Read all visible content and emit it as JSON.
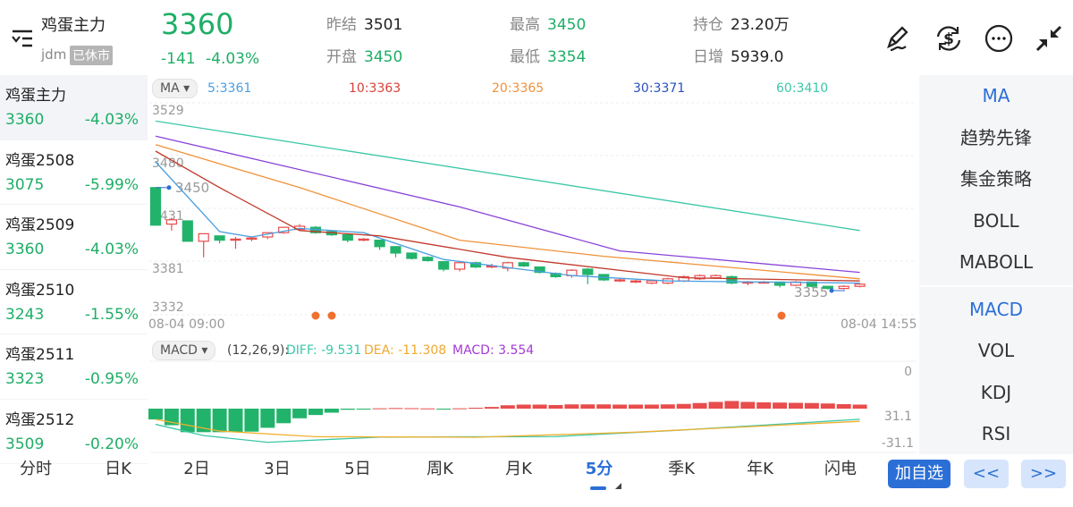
{
  "header": {
    "name": "鸡蛋主力",
    "code": "jdm",
    "status": "已休市",
    "price": "3360",
    "change": "-141",
    "change_pct": "-4.03%",
    "stats": [
      {
        "label": "昨结",
        "value": "3501",
        "color": "#222222"
      },
      {
        "label": "开盘",
        "value": "3450",
        "color": "#1fae66"
      },
      {
        "label": "最高",
        "value": "3450",
        "color": "#1fae66"
      },
      {
        "label": "最低",
        "value": "3354",
        "color": "#1fae66"
      },
      {
        "label": "持仓",
        "value": "23.20万",
        "color": "#222222"
      },
      {
        "label": "日增",
        "value": "5939.0",
        "color": "#222222"
      }
    ],
    "icons": [
      "draw-icon",
      "currency-exchange-icon",
      "more-icon",
      "collapse-icon"
    ]
  },
  "sidebar": {
    "items": [
      {
        "name": "鸡蛋主力",
        "price": "3360",
        "pct": "-4.03%"
      },
      {
        "name": "鸡蛋2508",
        "price": "3075",
        "pct": "-5.99%"
      },
      {
        "name": "鸡蛋2509",
        "price": "3360",
        "pct": "-4.03%"
      },
      {
        "name": "鸡蛋2510",
        "price": "3243",
        "pct": "-1.55%"
      },
      {
        "name": "鸡蛋2511",
        "price": "3323",
        "pct": "-0.95%"
      },
      {
        "name": "鸡蛋2512",
        "price": "3509",
        "pct": "-0.20%"
      }
    ]
  },
  "ma_legend": {
    "selector": "MA ▾",
    "items": [
      {
        "text": "5:3361",
        "color": "#4a9ee0"
      },
      {
        "text": "10:3363",
        "color": "#d9403a"
      },
      {
        "text": "20:3365",
        "color": "#f0923a"
      },
      {
        "text": "30:3371",
        "color": "#2a4fc0"
      },
      {
        "text": "60:3410",
        "color": "#3cc7a8"
      }
    ]
  },
  "macd_legend": {
    "selector": "MACD ▾",
    "params": "(12,26,9):",
    "diff": "DIFF: -9.531",
    "dea": "DEA: -11.308",
    "macd": "MACD: 3.554"
  },
  "price_axis": [
    "3529",
    "3480",
    "3431",
    "3381",
    "3332"
  ],
  "time_axis": {
    "start": "08-04 09:00",
    "end": "08-04 14:55"
  },
  "markers": {
    "high": "3450",
    "low": "3355"
  },
  "macd_axis": [
    "31.1",
    "0",
    "-31.1"
  ],
  "colors": {
    "up": "#e84c4c",
    "down": "#22b36b",
    "accent": "#2b6fd6"
  },
  "chart_data": {
    "type": "candlestick",
    "ylim": [
      3332,
      3529
    ],
    "candles": [
      [
        3450,
        3450,
        3415,
        3415
      ],
      [
        3416,
        3422,
        3410,
        3420
      ],
      [
        3419,
        3419,
        3400,
        3400
      ],
      [
        3400,
        3407,
        3385,
        3407
      ],
      [
        3405,
        3405,
        3398,
        3401
      ],
      [
        3401,
        3404,
        3393,
        3402
      ],
      [
        3402,
        3404,
        3400,
        3403
      ],
      [
        3404,
        3408,
        3402,
        3408
      ],
      [
        3408,
        3413,
        3407,
        3413
      ],
      [
        3411,
        3416,
        3410,
        3414
      ],
      [
        3413,
        3414,
        3407,
        3408
      ],
      [
        3409,
        3410,
        3405,
        3406
      ],
      [
        3406,
        3407,
        3399,
        3401
      ],
      [
        3401,
        3403,
        3400,
        3402
      ],
      [
        3401,
        3401,
        3392,
        3395
      ],
      [
        3395,
        3395,
        3385,
        3389
      ],
      [
        3389,
        3389,
        3383,
        3384
      ],
      [
        3385,
        3386,
        3381,
        3382
      ],
      [
        3381,
        3381,
        3372,
        3374
      ],
      [
        3374,
        3381,
        3372,
        3380
      ],
      [
        3380,
        3381,
        3375,
        3376
      ],
      [
        3377,
        3379,
        3375,
        3377
      ],
      [
        3375,
        3381,
        3372,
        3380
      ],
      [
        3380,
        3381,
        3376,
        3377
      ],
      [
        3376,
        3376,
        3370,
        3371
      ],
      [
        3370,
        3371,
        3366,
        3367
      ],
      [
        3368,
        3374,
        3366,
        3373
      ],
      [
        3374,
        3375,
        3360,
        3369
      ],
      [
        3369,
        3369,
        3363,
        3364
      ],
      [
        3364,
        3365,
        3362,
        3364
      ],
      [
        3363,
        3364,
        3361,
        3363
      ],
      [
        3361,
        3364,
        3360,
        3363
      ],
      [
        3361,
        3366,
        3360,
        3365
      ],
      [
        3363,
        3368,
        3362,
        3367
      ],
      [
        3365,
        3369,
        3364,
        3368
      ],
      [
        3366,
        3369,
        3365,
        3368
      ],
      [
        3367,
        3368,
        3360,
        3361
      ],
      [
        3361,
        3363,
        3359,
        3362
      ],
      [
        3362,
        3363,
        3361,
        3362
      ],
      [
        3362,
        3362,
        3357,
        3359
      ],
      [
        3359,
        3363,
        3358,
        3362
      ],
      [
        3362,
        3362,
        3357,
        3358
      ],
      [
        3358,
        3358,
        3355,
        3356
      ],
      [
        3356,
        3359,
        3355,
        3358
      ],
      [
        3358,
        3361,
        3357,
        3360
      ]
    ],
    "ma": {
      "5": [
        [
          0,
          3474
        ],
        [
          4,
          3409
        ],
        [
          6,
          3404
        ],
        [
          9,
          3412
        ],
        [
          13,
          3408
        ],
        [
          18,
          3383
        ],
        [
          26,
          3368
        ],
        [
          32,
          3363
        ],
        [
          44,
          3361
        ]
      ],
      "10": [
        [
          0,
          3484
        ],
        [
          4,
          3450
        ],
        [
          9,
          3410
        ],
        [
          14,
          3405
        ],
        [
          22,
          3385
        ],
        [
          33,
          3366
        ],
        [
          44,
          3363
        ]
      ],
      "20": [
        [
          0,
          3490
        ],
        [
          9,
          3450
        ],
        [
          19,
          3401
        ],
        [
          28,
          3386
        ],
        [
          44,
          3365
        ]
      ],
      "30": [
        [
          0,
          3498
        ],
        [
          19,
          3432
        ],
        [
          29,
          3391
        ],
        [
          44,
          3371
        ]
      ],
      "60": [
        [
          0,
          3512
        ],
        [
          44,
          3410
        ]
      ]
    },
    "macd": {
      "ylim": [
        -31.1,
        31.1
      ],
      "hist": [
        -9.6,
        -14.8,
        -21,
        -21,
        -21,
        -21,
        -20.5,
        -17.1,
        -13,
        -8.6,
        -5.7,
        -3.6,
        -1,
        -0.5,
        0.3,
        0.5,
        0.4,
        0.2,
        -0.4,
        0.3,
        0.8,
        1.5,
        3,
        3.6,
        3.6,
        3.2,
        3.8,
        3.8,
        3.8,
        3.6,
        3.6,
        3.6,
        3.8,
        4.2,
        5,
        6,
        6.8,
        6,
        5.6,
        5.4,
        5.2,
        5,
        4.6,
        4,
        3.6
      ],
      "diff": [
        [
          0,
          -14
        ],
        [
          3,
          -24
        ],
        [
          7,
          -30
        ],
        [
          14,
          -25.4
        ],
        [
          25,
          -24.9
        ],
        [
          33,
          -19
        ],
        [
          44,
          -9.5
        ]
      ],
      "dea": [
        [
          0,
          -9.6
        ],
        [
          4,
          -20
        ],
        [
          10,
          -25
        ],
        [
          20,
          -25.5
        ],
        [
          30,
          -21
        ],
        [
          44,
          -11.3
        ]
      ]
    }
  },
  "right_panel": {
    "main": [
      "MA",
      "趋势先锋",
      "集金策略",
      "BOLL",
      "MABOLL"
    ],
    "sub": [
      "MACD",
      "VOL",
      "KDJ",
      "RSI"
    ]
  },
  "tabs": [
    "分时",
    "日K",
    "2日",
    "3日",
    "5日",
    "周K",
    "月K",
    "5分",
    "季K",
    "年K",
    "闪电"
  ],
  "active_tab": "5分",
  "buttons": {
    "add": "加自选",
    "prev": "<<",
    "next": ">>"
  }
}
